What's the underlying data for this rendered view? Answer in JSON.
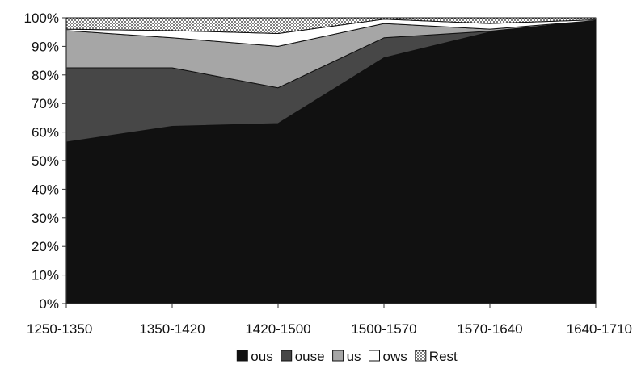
{
  "chart_data": {
    "type": "area",
    "stacked": true,
    "percent": true,
    "categories": [
      "1250-1350",
      "1350-1420",
      "1420-1500",
      "1500-1570",
      "1570-1640",
      "1640-1710"
    ],
    "ylim": [
      0,
      100
    ],
    "yticks": [
      "0%",
      "10%",
      "20%",
      "30%",
      "40%",
      "50%",
      "60%",
      "70%",
      "80%",
      "90%",
      "100%"
    ],
    "grid": false,
    "legend_position": "bottom",
    "series": [
      {
        "name": "ous",
        "values": [
          56.5,
          62,
          63,
          86,
          95,
          99
        ],
        "color": "#111111",
        "pattern": "solid"
      },
      {
        "name": "ouse",
        "values": [
          26,
          20.5,
          12.5,
          7,
          0.3,
          0
        ],
        "color": "#474747",
        "pattern": "solid"
      },
      {
        "name": "us",
        "values": [
          13,
          10.5,
          14.5,
          5,
          0.7,
          0
        ],
        "color": "#a6a6a6",
        "pattern": "solid"
      },
      {
        "name": "ows",
        "values": [
          0.5,
          2.5,
          4.5,
          1.5,
          2,
          0.3
        ],
        "color": "#ffffff",
        "pattern": "solid"
      },
      {
        "name": "Rest",
        "values": [
          4,
          4.5,
          5.5,
          0.5,
          2,
          0.7
        ],
        "color": "#ffffff",
        "pattern": "dots"
      }
    ]
  }
}
